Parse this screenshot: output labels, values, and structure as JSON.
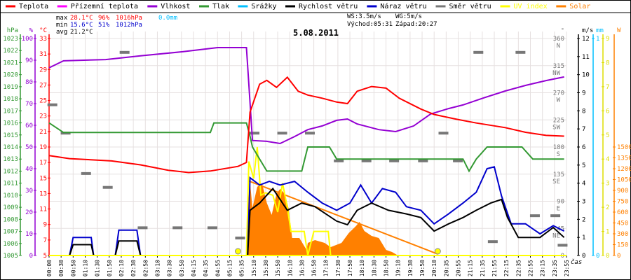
{
  "chart_data": {
    "type": "line",
    "title": "5.08.2011",
    "x_label": "čas",
    "x_ticks": [
      "00:00",
      "00:30",
      "00:50",
      "01:10",
      "01:30",
      "01:50",
      "02:10",
      "02:30",
      "02:50",
      "03:10",
      "03:30",
      "03:50",
      "04:15",
      "04:35",
      "04:55",
      "05:15",
      "05:35",
      "15:10",
      "15:30",
      "15:50",
      "16:10",
      "16:30",
      "16:50",
      "17:10",
      "17:30",
      "17:50",
      "18:10",
      "18:30",
      "18:50",
      "19:10",
      "19:30",
      "19:50",
      "20:10",
      "20:35",
      "20:55",
      "21:15",
      "21:35",
      "21:55",
      "22:15",
      "22:35",
      "22:55",
      "23:15",
      "23:35",
      "23:55"
    ],
    "legend": [
      {
        "name": "Teplota",
        "color": "#ff0000"
      },
      {
        "name": "Přízemní teplota",
        "color": "#ff00ff"
      },
      {
        "name": "Vlhkost",
        "color": "#9400d3"
      },
      {
        "name": "Tlak",
        "color": "#339933"
      },
      {
        "name": "Srážky",
        "color": "#00bfff"
      },
      {
        "name": "Rychlost větru",
        "color": "#000000"
      },
      {
        "name": "Náraz větru",
        "color": "#0000cc"
      },
      {
        "name": "Směr větru",
        "color": "#777777"
      },
      {
        "name": "UV index",
        "color": "#ffff00"
      },
      {
        "name": "Solar",
        "color": "#ff8000"
      }
    ],
    "stats": {
      "max_label": "max",
      "min_label": "min",
      "avg_label": "avg",
      "max_temp": "28.1°C",
      "max_hum": "96%",
      "max_press": "1016hPa",
      "max_rain": "0.0mm",
      "min_temp": "15.6°C",
      "min_hum": "51%",
      "min_press": "1012hPa",
      "avg_temp": "21.2°C",
      "ws": "WS:3.5m/s",
      "wg": "WG:5m/s",
      "sunrise": "Východ:05:31",
      "sunset": "Západ:20:27"
    },
    "axes": {
      "pressure": {
        "unit": "hPa",
        "min": 1005,
        "max": 1023,
        "step": 1,
        "color": "#339933"
      },
      "humidity": {
        "unit": "%",
        "min": 0,
        "max": 100,
        "step": 10,
        "color": "#9400d3"
      },
      "temperature": {
        "unit": "°C",
        "min": 5,
        "max": 33,
        "step": 2,
        "color": "#ff0000"
      },
      "direction": {
        "unit": "°",
        "min": 0,
        "max": 360,
        "step": 45,
        "compass": [
          "",
          "NE",
          "E",
          "SE",
          "S",
          "SW",
          "W",
          "NW",
          "N"
        ],
        "color": "#777777"
      },
      "wind": {
        "unit": "m/s",
        "min": 0,
        "max": 12,
        "step": 1,
        "color": "#000000"
      },
      "rain": {
        "unit": "mm",
        "min": 0,
        "max": 1,
        "step": 1,
        "color": "#00bfff"
      },
      "uv": {
        "unit": "",
        "min": 0,
        "max": 9,
        "step": 1,
        "color": "#dddd00"
      },
      "solar": {
        "unit": "W",
        "min": 0,
        "max": 3000,
        "step": 150,
        "labelmax": 1500,
        "color": "#ff8000"
      }
    },
    "series": {
      "temperature": [
        [
          0,
          17.9
        ],
        [
          1.7,
          17.5
        ],
        [
          5.2,
          17.2
        ],
        [
          7.6,
          16.7
        ],
        [
          9.9,
          16.0
        ],
        [
          11.6,
          15.7
        ],
        [
          13.4,
          15.9
        ],
        [
          15.7,
          16.5
        ],
        [
          16.4,
          17.0
        ],
        [
          16.7,
          23.5
        ],
        [
          17.5,
          27.1
        ],
        [
          18.1,
          27.6
        ],
        [
          18.9,
          26.7
        ],
        [
          19.8,
          28.0
        ],
        [
          20.7,
          26.2
        ],
        [
          21.5,
          25.7
        ],
        [
          22.7,
          25.3
        ],
        [
          23.9,
          24.8
        ],
        [
          24.8,
          24.6
        ],
        [
          25.6,
          26.2
        ],
        [
          26.8,
          26.8
        ],
        [
          28.0,
          26.6
        ],
        [
          29.1,
          25.3
        ],
        [
          30.9,
          23.9
        ],
        [
          32.0,
          23.2
        ],
        [
          33.8,
          22.6
        ],
        [
          35.5,
          22.1
        ],
        [
          37.9,
          21.5
        ],
        [
          39.6,
          20.9
        ],
        [
          41.3,
          20.5
        ],
        [
          42.8,
          20.4
        ]
      ],
      "humidity": [
        [
          0,
          86.5
        ],
        [
          1.2,
          89.7
        ],
        [
          4.7,
          90.3
        ],
        [
          7.6,
          92
        ],
        [
          11.1,
          93.9
        ],
        [
          14.0,
          95.8
        ],
        [
          16.4,
          95.8
        ],
        [
          16.6,
          79
        ],
        [
          16.9,
          53
        ],
        [
          18.1,
          52.6
        ],
        [
          19.2,
          51.6
        ],
        [
          20.4,
          54.8
        ],
        [
          21.5,
          58
        ],
        [
          22.7,
          59.7
        ],
        [
          23.9,
          62.3
        ],
        [
          24.8,
          62.9
        ],
        [
          25.6,
          60.6
        ],
        [
          27.4,
          58
        ],
        [
          28.8,
          57.1
        ],
        [
          30.3,
          59.7
        ],
        [
          31.7,
          65.2
        ],
        [
          33.2,
          67.7
        ],
        [
          34.4,
          69.4
        ],
        [
          36.1,
          72.6
        ],
        [
          37.9,
          75.8
        ],
        [
          39.6,
          78.4
        ],
        [
          41.3,
          80.6
        ],
        [
          42.8,
          82.3
        ]
      ],
      "pressure": [
        [
          0,
          1016
        ],
        [
          1.2,
          1015.2
        ],
        [
          13.4,
          1015.2
        ],
        [
          13.7,
          1016
        ],
        [
          16.4,
          1016
        ],
        [
          16.7,
          1014.9
        ],
        [
          16.9,
          1014
        ],
        [
          17.5,
          1013
        ],
        [
          18.1,
          1012
        ],
        [
          21.0,
          1012
        ],
        [
          21.5,
          1014
        ],
        [
          23.3,
          1014
        ],
        [
          23.9,
          1013
        ],
        [
          34.4,
          1013
        ],
        [
          34.9,
          1012
        ],
        [
          35.5,
          1013
        ],
        [
          36.4,
          1014
        ],
        [
          39.3,
          1014
        ],
        [
          40.2,
          1013
        ],
        [
          42.8,
          1013
        ]
      ],
      "wind_speed": [
        [
          0,
          0
        ],
        [
          1.7,
          0
        ],
        [
          2.0,
          0.6
        ],
        [
          3.5,
          0.6
        ],
        [
          3.7,
          0
        ],
        [
          5.5,
          0
        ],
        [
          5.8,
          0.8
        ],
        [
          7.3,
          0.8
        ],
        [
          7.6,
          0
        ],
        [
          16.5,
          0
        ],
        [
          16.7,
          2.5
        ],
        [
          17.5,
          2.9
        ],
        [
          18.6,
          3.7
        ],
        [
          19.2,
          3.1
        ],
        [
          19.8,
          2.5
        ],
        [
          21.0,
          2.9
        ],
        [
          22.1,
          2.7
        ],
        [
          23.9,
          1.9
        ],
        [
          24.8,
          1.7
        ],
        [
          25.6,
          2.5
        ],
        [
          26.8,
          2.9
        ],
        [
          28.2,
          2.5
        ],
        [
          29.7,
          2.3
        ],
        [
          30.9,
          2.1
        ],
        [
          32.0,
          1.35
        ],
        [
          33.2,
          1.75
        ],
        [
          34.4,
          2.1
        ],
        [
          35.5,
          2.5
        ],
        [
          36.7,
          2.9
        ],
        [
          37.6,
          3.1
        ],
        [
          38.1,
          2.1
        ],
        [
          39.0,
          1.0
        ],
        [
          40.8,
          1.0
        ],
        [
          41.9,
          1.55
        ],
        [
          42.8,
          1.0
        ]
      ],
      "wind_gust": [
        [
          0,
          0
        ],
        [
          1.7,
          0
        ],
        [
          2.0,
          1.0
        ],
        [
          3.5,
          1.0
        ],
        [
          3.7,
          0
        ],
        [
          5.5,
          0
        ],
        [
          5.8,
          1.4
        ],
        [
          7.3,
          1.4
        ],
        [
          7.6,
          0
        ],
        [
          16.5,
          0
        ],
        [
          16.7,
          4.3
        ],
        [
          17.5,
          3.9
        ],
        [
          18.3,
          4.1
        ],
        [
          19.2,
          3.9
        ],
        [
          20.4,
          4.1
        ],
        [
          21.5,
          3.5
        ],
        [
          22.7,
          2.9
        ],
        [
          23.9,
          2.5
        ],
        [
          25.0,
          2.9
        ],
        [
          25.9,
          3.9
        ],
        [
          26.8,
          2.9
        ],
        [
          27.7,
          3.7
        ],
        [
          28.8,
          3.5
        ],
        [
          29.7,
          2.7
        ],
        [
          30.9,
          2.5
        ],
        [
          32.0,
          1.75
        ],
        [
          33.2,
          2.3
        ],
        [
          34.4,
          2.9
        ],
        [
          35.5,
          3.5
        ],
        [
          36.4,
          4.8
        ],
        [
          37.0,
          4.9
        ],
        [
          37.6,
          3.3
        ],
        [
          38.4,
          1.75
        ],
        [
          39.6,
          1.75
        ],
        [
          40.8,
          1.2
        ],
        [
          41.9,
          1.65
        ],
        [
          42.8,
          1.35
        ]
      ],
      "wind_dir": [
        [
          0.1,
          250
        ],
        [
          1.2,
          203
        ],
        [
          2.9,
          136
        ],
        [
          4.7,
          113
        ],
        [
          6.1,
          337
        ],
        [
          7.6,
          46
        ],
        [
          10.5,
          46
        ],
        [
          13.4,
          46
        ],
        [
          15.7,
          29
        ],
        [
          16.9,
          203
        ],
        [
          19.2,
          203
        ],
        [
          21.5,
          203
        ],
        [
          23.9,
          157
        ],
        [
          26.2,
          157
        ],
        [
          28.5,
          157
        ],
        [
          30.9,
          157
        ],
        [
          32.6,
          203
        ],
        [
          33.8,
          157
        ],
        [
          35.5,
          337
        ],
        [
          36.7,
          23
        ],
        [
          39.0,
          337
        ],
        [
          40.2,
          66
        ],
        [
          41.9,
          66
        ],
        [
          42.5,
          17
        ]
      ],
      "solar": [
        [
          16.4,
          0
        ],
        [
          16.5,
          658
        ],
        [
          16.7,
          1016
        ],
        [
          16.9,
          658
        ],
        [
          17.3,
          949
        ],
        [
          17.7,
          997
        ],
        [
          18.1,
          726
        ],
        [
          18.5,
          561
        ],
        [
          18.9,
          852
        ],
        [
          19.2,
          920
        ],
        [
          19.6,
          852
        ],
        [
          19.9,
          658
        ],
        [
          20.2,
          242
        ],
        [
          20.8,
          242
        ],
        [
          21.4,
          77
        ],
        [
          21.5,
          174
        ],
        [
          22.1,
          213
        ],
        [
          22.9,
          174
        ],
        [
          23.4,
          116
        ],
        [
          24.3,
          174
        ],
        [
          24.9,
          310
        ],
        [
          25.5,
          407
        ],
        [
          25.8,
          465
        ],
        [
          26.2,
          339
        ],
        [
          26.8,
          271
        ],
        [
          27.4,
          242
        ],
        [
          28.0,
          77
        ],
        [
          28.5,
          48
        ],
        [
          29.0,
          0
        ]
      ],
      "solar_theoretical": [
        [
          16.6,
          1030
        ],
        [
          32.3,
          20
        ]
      ],
      "uv": [
        [
          16.4,
          0
        ],
        [
          16.6,
          3.9
        ],
        [
          17.0,
          3.2
        ],
        [
          17.3,
          4.5
        ],
        [
          17.6,
          2.5
        ],
        [
          18.0,
          2.6
        ],
        [
          18.6,
          2.5
        ],
        [
          19.0,
          1.8
        ],
        [
          19.4,
          3.0
        ],
        [
          19.8,
          2.0
        ],
        [
          20.1,
          1.0
        ],
        [
          21.2,
          1.0
        ],
        [
          21.5,
          0
        ],
        [
          22.0,
          1.0
        ],
        [
          23.2,
          1.0
        ],
        [
          23.4,
          0
        ],
        [
          42.8,
          0
        ]
      ],
      "rain": [
        [
          0,
          0
        ],
        [
          42.8,
          0
        ]
      ],
      "sun_markers": [
        15.7,
        32.3
      ]
    },
    "xlim": [
      0,
      43
    ]
  }
}
